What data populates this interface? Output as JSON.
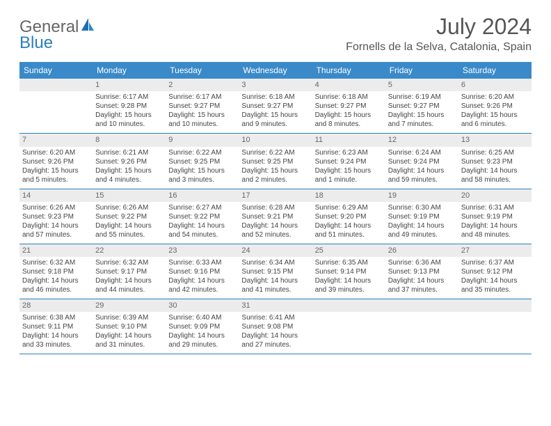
{
  "brand": {
    "part1": "General",
    "part2": "Blue"
  },
  "title": "July 2024",
  "location": "Fornells de la Selva, Catalonia, Spain",
  "colors": {
    "header_bg": "#3a8ac9",
    "header_text": "#ffffff",
    "daynum_bg": "#ececec",
    "row_border": "#2a7fba",
    "brand_blue": "#2a7fba",
    "body_text": "#444"
  },
  "day_headers": [
    "Sunday",
    "Monday",
    "Tuesday",
    "Wednesday",
    "Thursday",
    "Friday",
    "Saturday"
  ],
  "weeks": [
    [
      {
        "n": "",
        "sr": "",
        "ss": "",
        "dl": ""
      },
      {
        "n": "1",
        "sr": "6:17 AM",
        "ss": "9:28 PM",
        "dl": "15 hours and 10 minutes."
      },
      {
        "n": "2",
        "sr": "6:17 AM",
        "ss": "9:27 PM",
        "dl": "15 hours and 10 minutes."
      },
      {
        "n": "3",
        "sr": "6:18 AM",
        "ss": "9:27 PM",
        "dl": "15 hours and 9 minutes."
      },
      {
        "n": "4",
        "sr": "6:18 AM",
        "ss": "9:27 PM",
        "dl": "15 hours and 8 minutes."
      },
      {
        "n": "5",
        "sr": "6:19 AM",
        "ss": "9:27 PM",
        "dl": "15 hours and 7 minutes."
      },
      {
        "n": "6",
        "sr": "6:20 AM",
        "ss": "9:26 PM",
        "dl": "15 hours and 6 minutes."
      }
    ],
    [
      {
        "n": "7",
        "sr": "6:20 AM",
        "ss": "9:26 PM",
        "dl": "15 hours and 5 minutes."
      },
      {
        "n": "8",
        "sr": "6:21 AM",
        "ss": "9:26 PM",
        "dl": "15 hours and 4 minutes."
      },
      {
        "n": "9",
        "sr": "6:22 AM",
        "ss": "9:25 PM",
        "dl": "15 hours and 3 minutes."
      },
      {
        "n": "10",
        "sr": "6:22 AM",
        "ss": "9:25 PM",
        "dl": "15 hours and 2 minutes."
      },
      {
        "n": "11",
        "sr": "6:23 AM",
        "ss": "9:24 PM",
        "dl": "15 hours and 1 minute."
      },
      {
        "n": "12",
        "sr": "6:24 AM",
        "ss": "9:24 PM",
        "dl": "14 hours and 59 minutes."
      },
      {
        "n": "13",
        "sr": "6:25 AM",
        "ss": "9:23 PM",
        "dl": "14 hours and 58 minutes."
      }
    ],
    [
      {
        "n": "14",
        "sr": "6:26 AM",
        "ss": "9:23 PM",
        "dl": "14 hours and 57 minutes."
      },
      {
        "n": "15",
        "sr": "6:26 AM",
        "ss": "9:22 PM",
        "dl": "14 hours and 55 minutes."
      },
      {
        "n": "16",
        "sr": "6:27 AM",
        "ss": "9:22 PM",
        "dl": "14 hours and 54 minutes."
      },
      {
        "n": "17",
        "sr": "6:28 AM",
        "ss": "9:21 PM",
        "dl": "14 hours and 52 minutes."
      },
      {
        "n": "18",
        "sr": "6:29 AM",
        "ss": "9:20 PM",
        "dl": "14 hours and 51 minutes."
      },
      {
        "n": "19",
        "sr": "6:30 AM",
        "ss": "9:19 PM",
        "dl": "14 hours and 49 minutes."
      },
      {
        "n": "20",
        "sr": "6:31 AM",
        "ss": "9:19 PM",
        "dl": "14 hours and 48 minutes."
      }
    ],
    [
      {
        "n": "21",
        "sr": "6:32 AM",
        "ss": "9:18 PM",
        "dl": "14 hours and 46 minutes."
      },
      {
        "n": "22",
        "sr": "6:32 AM",
        "ss": "9:17 PM",
        "dl": "14 hours and 44 minutes."
      },
      {
        "n": "23",
        "sr": "6:33 AM",
        "ss": "9:16 PM",
        "dl": "14 hours and 42 minutes."
      },
      {
        "n": "24",
        "sr": "6:34 AM",
        "ss": "9:15 PM",
        "dl": "14 hours and 41 minutes."
      },
      {
        "n": "25",
        "sr": "6:35 AM",
        "ss": "9:14 PM",
        "dl": "14 hours and 39 minutes."
      },
      {
        "n": "26",
        "sr": "6:36 AM",
        "ss": "9:13 PM",
        "dl": "14 hours and 37 minutes."
      },
      {
        "n": "27",
        "sr": "6:37 AM",
        "ss": "9:12 PM",
        "dl": "14 hours and 35 minutes."
      }
    ],
    [
      {
        "n": "28",
        "sr": "6:38 AM",
        "ss": "9:11 PM",
        "dl": "14 hours and 33 minutes."
      },
      {
        "n": "29",
        "sr": "6:39 AM",
        "ss": "9:10 PM",
        "dl": "14 hours and 31 minutes."
      },
      {
        "n": "30",
        "sr": "6:40 AM",
        "ss": "9:09 PM",
        "dl": "14 hours and 29 minutes."
      },
      {
        "n": "31",
        "sr": "6:41 AM",
        "ss": "9:08 PM",
        "dl": "14 hours and 27 minutes."
      },
      {
        "n": "",
        "sr": "",
        "ss": "",
        "dl": ""
      },
      {
        "n": "",
        "sr": "",
        "ss": "",
        "dl": ""
      },
      {
        "n": "",
        "sr": "",
        "ss": "",
        "dl": ""
      }
    ]
  ],
  "labels": {
    "sunrise": "Sunrise:",
    "sunset": "Sunset:",
    "daylight": "Daylight:"
  }
}
